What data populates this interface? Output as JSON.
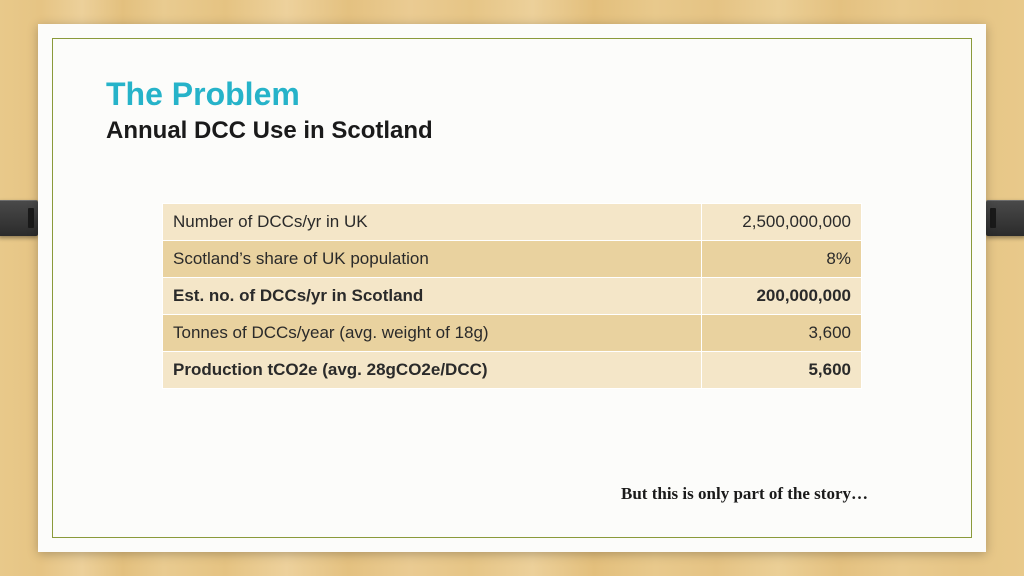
{
  "title": "The Problem",
  "subtitle": "Annual DCC Use in Scotland",
  "footer_note": "But this is only part of the story…",
  "colors": {
    "title": "#26b3c9",
    "subtitle": "#1a1a1a",
    "border": "#8a9a3a",
    "row_light": "#f4e6c8",
    "row_dark": "#e9d29f",
    "card_bg": "#fcfcfa"
  },
  "table": {
    "rows": [
      {
        "label": "Number of DCCs/yr in UK",
        "value": "2,500,000,000",
        "bold": false,
        "shade": "light"
      },
      {
        "label": "Scotland’s share of UK population",
        "value": "8%",
        "bold": false,
        "shade": "dark"
      },
      {
        "label": "Est. no. of DCCs/yr in Scotland",
        "value": "200,000,000",
        "bold": true,
        "shade": "light"
      },
      {
        "label": "Tonnes of DCCs/year (avg. weight of 18g)",
        "value": "3,600",
        "bold": false,
        "shade": "dark"
      },
      {
        "label": "Production tCO2e (avg. 28gCO2e/DCC)",
        "value": "5,600",
        "bold": true,
        "shade": "light"
      }
    ]
  }
}
